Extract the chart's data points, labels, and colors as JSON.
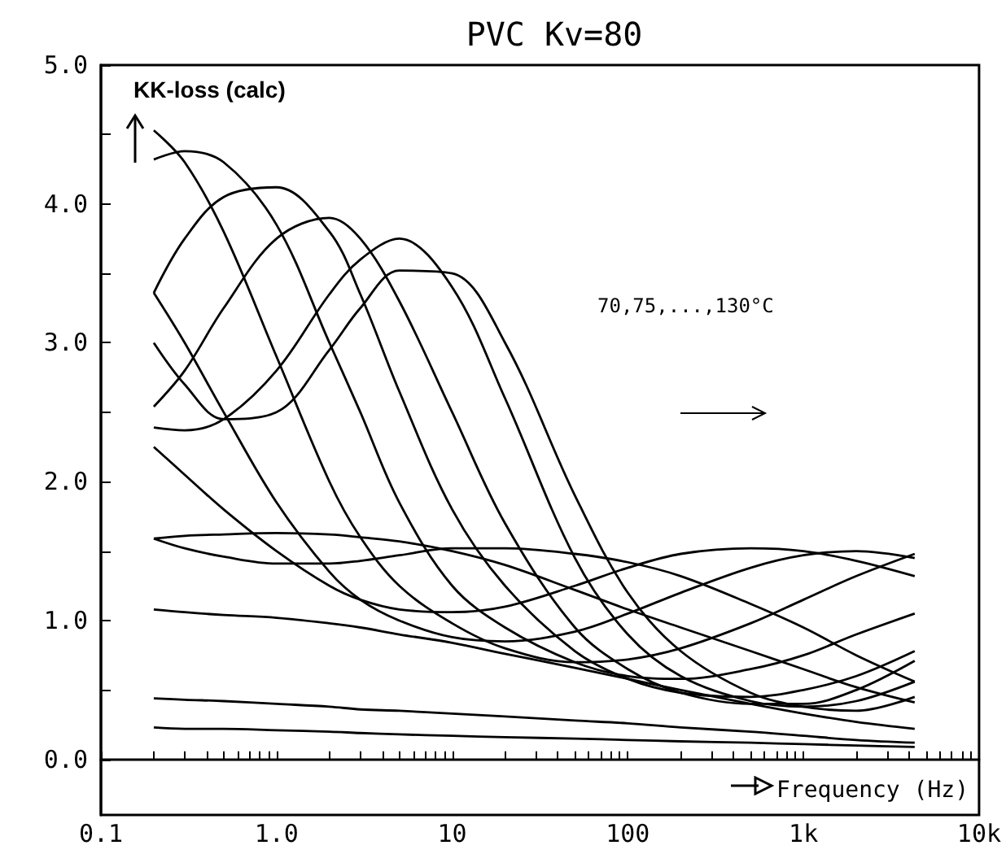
{
  "chart_data": {
    "type": "line",
    "title": "PVC Kv=80",
    "ylabel": "KK-loss (calc)",
    "xlabel": "Frequency (Hz)",
    "annotations": [
      "70,75,...,130°C"
    ],
    "log": "x",
    "marker": "none",
    "line_style": "solid",
    "x": [
      0.2,
      0.3,
      0.5,
      1,
      2,
      3,
      5,
      10,
      20,
      50,
      100,
      200,
      500,
      1000,
      2000,
      4300
    ],
    "xlim": [
      0.1,
      10000
    ],
    "xticks": [
      0.1,
      {
        "value": 0.2,
        "label": null
      },
      {
        "value": 0.3,
        "label": null
      },
      {
        "value": 0.4,
        "label": null
      },
      {
        "value": 0.5,
        "label": null
      },
      {
        "value": 0.6,
        "label": null
      },
      {
        "value": 0.7,
        "label": null
      },
      {
        "value": 0.8,
        "label": null
      },
      {
        "value": 0.9,
        "label": null
      },
      {
        "value": 1,
        "label": "1.0"
      },
      {
        "value": 2,
        "label": null
      },
      {
        "value": 3,
        "label": null
      },
      {
        "value": 4,
        "label": null
      },
      {
        "value": 5,
        "label": null
      },
      {
        "value": 6,
        "label": null
      },
      {
        "value": 7,
        "label": null
      },
      {
        "value": 8,
        "label": null
      },
      {
        "value": 9,
        "label": null
      },
      10,
      {
        "value": 20,
        "label": null
      },
      {
        "value": 30,
        "label": null
      },
      {
        "value": 40,
        "label": null
      },
      {
        "value": 50,
        "label": null
      },
      {
        "value": 60,
        "label": null
      },
      {
        "value": 70,
        "label": null
      },
      {
        "value": 80,
        "label": null
      },
      {
        "value": 90,
        "label": null
      },
      100,
      {
        "value": 200,
        "label": null
      },
      {
        "value": 300,
        "label": null
      },
      {
        "value": 400,
        "label": null
      },
      {
        "value": 500,
        "label": null
      },
      {
        "value": 600,
        "label": null
      },
      {
        "value": 700,
        "label": null
      },
      {
        "value": 800,
        "label": null
      },
      {
        "value": 900,
        "label": null
      },
      {
        "value": 1000,
        "label": "1k"
      },
      {
        "value": 2000,
        "label": null
      },
      {
        "value": 3000,
        "label": null
      },
      {
        "value": 4000,
        "label": null
      },
      {
        "value": 5000,
        "label": null
      },
      {
        "value": 6000,
        "label": null
      },
      {
        "value": 7000,
        "label": null
      },
      {
        "value": 8000,
        "label": null
      },
      {
        "value": 9000,
        "label": null
      },
      {
        "value": 10000,
        "label": "10k"
      }
    ],
    "ylim": [
      -0.4,
      5
    ],
    "yticks": [
      {
        "value": 0,
        "label": "0.0"
      },
      {
        "value": 0.5,
        "label": null
      },
      {
        "value": 1,
        "label": "1.0"
      },
      {
        "value": 1.5,
        "label": null
      },
      {
        "value": 2,
        "label": "2.0"
      },
      {
        "value": 2.5,
        "label": null
      },
      {
        "value": 3,
        "label": "3.0"
      },
      {
        "value": 3.5,
        "label": null
      },
      {
        "value": 4,
        "label": "4.0"
      },
      {
        "value": 4.5,
        "label": null
      },
      {
        "value": 5,
        "label": "5.0"
      }
    ],
    "series": [
      {
        "color": "#000000",
        "values": [
          0.23,
          0.22,
          0.22,
          0.21,
          0.2,
          0.19,
          0.18,
          0.17,
          0.16,
          0.15,
          0.14,
          0.13,
          0.12,
          0.11,
          0.1,
          0.09
        ]
      },
      {
        "color": "#000000",
        "values": [
          0.44,
          0.43,
          0.42,
          0.4,
          0.38,
          0.36,
          0.35,
          0.33,
          0.31,
          0.28,
          0.26,
          0.23,
          0.2,
          0.17,
          0.14,
          0.12
        ]
      },
      {
        "color": "#000000",
        "values": [
          1.08,
          1.06,
          1.04,
          1.02,
          0.98,
          0.95,
          0.9,
          0.84,
          0.76,
          0.66,
          0.58,
          0.5,
          0.4,
          0.33,
          0.27,
          0.22
        ]
      },
      {
        "color": "#000000",
        "values": [
          1.59,
          1.61,
          1.62,
          1.63,
          1.62,
          1.6,
          1.57,
          1.5,
          1.4,
          1.22,
          1.08,
          0.95,
          0.78,
          0.65,
          0.52,
          0.41
        ]
      },
      {
        "color": "#000000",
        "values": [
          1.59,
          1.52,
          1.46,
          1.41,
          1.41,
          1.43,
          1.47,
          1.52,
          1.52,
          1.48,
          1.42,
          1.32,
          1.12,
          0.95,
          0.75,
          0.56
        ]
      },
      {
        "color": "#000000",
        "values": [
          2.25,
          2.05,
          1.8,
          1.5,
          1.25,
          1.15,
          1.08,
          1.06,
          1.1,
          1.25,
          1.38,
          1.48,
          1.52,
          1.5,
          1.43,
          1.32
        ]
      },
      {
        "color": "#000000",
        "values": [
          3.36,
          3.0,
          2.5,
          1.85,
          1.35,
          1.15,
          1.0,
          0.88,
          0.85,
          0.92,
          1.05,
          1.2,
          1.38,
          1.47,
          1.5,
          1.45
        ]
      },
      {
        "color": "#000000",
        "values": [
          4.53,
          4.3,
          3.8,
          2.9,
          2.0,
          1.6,
          1.25,
          0.98,
          0.8,
          0.7,
          0.72,
          0.8,
          0.98,
          1.15,
          1.32,
          1.48
        ]
      },
      {
        "color": "#000000",
        "values": [
          4.32,
          4.38,
          4.3,
          3.85,
          3.0,
          2.5,
          1.85,
          1.25,
          0.95,
          0.7,
          0.6,
          0.58,
          0.65,
          0.75,
          0.9,
          1.05
        ]
      },
      {
        "color": "#000000",
        "values": [
          3.36,
          3.75,
          4.05,
          4.12,
          3.8,
          3.35,
          2.65,
          1.8,
          1.25,
          0.78,
          0.58,
          0.48,
          0.45,
          0.5,
          0.6,
          0.78
        ]
      },
      {
        "color": "#000000",
        "values": [
          2.54,
          2.8,
          3.25,
          3.75,
          3.9,
          3.75,
          3.3,
          2.5,
          1.7,
          0.95,
          0.65,
          0.48,
          0.4,
          0.4,
          0.5,
          0.71
        ]
      },
      {
        "color": "#000000",
        "values": [
          2.39,
          2.37,
          2.45,
          2.8,
          3.35,
          3.6,
          3.75,
          3.4,
          2.6,
          1.45,
          0.9,
          0.6,
          0.42,
          0.38,
          0.42,
          0.56
        ]
      },
      {
        "color": "#000000",
        "values": [
          3.0,
          2.7,
          2.45,
          2.5,
          2.95,
          3.25,
          3.52,
          3.5,
          3.0,
          1.9,
          1.2,
          0.78,
          0.48,
          0.38,
          0.35,
          0.45
        ]
      }
    ]
  }
}
